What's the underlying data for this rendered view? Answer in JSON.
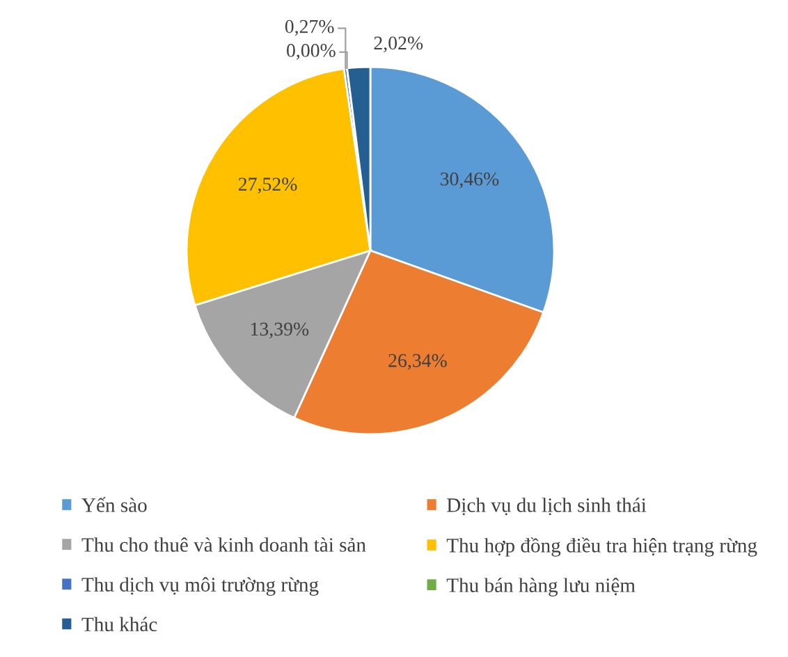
{
  "chart_data": {
    "type": "pie",
    "categories": [
      "Yến sào",
      "Dịch vụ du lịch sinh thái",
      "Thu cho thuê và kinh doanh tài sản",
      "Thu hợp đồng điều tra hiện trạng rừng",
      "Thu dịch vụ môi trường rừng",
      "Thu bán hàng lưu niệm",
      "Thu khác"
    ],
    "values": [
      30.46,
      26.34,
      13.39,
      27.52,
      0.27,
      0.0,
      2.02
    ],
    "colors": [
      "#5b9bd5",
      "#ed7d31",
      "#a5a5a5",
      "#ffc000",
      "#4472c4",
      "#70ad47",
      "#255e91"
    ],
    "value_labels": [
      "30,46%",
      "26,34%",
      "13,39%",
      "27,52%",
      "0,27%",
      "0,00%",
      "2,02%"
    ],
    "legend": "bottom"
  }
}
